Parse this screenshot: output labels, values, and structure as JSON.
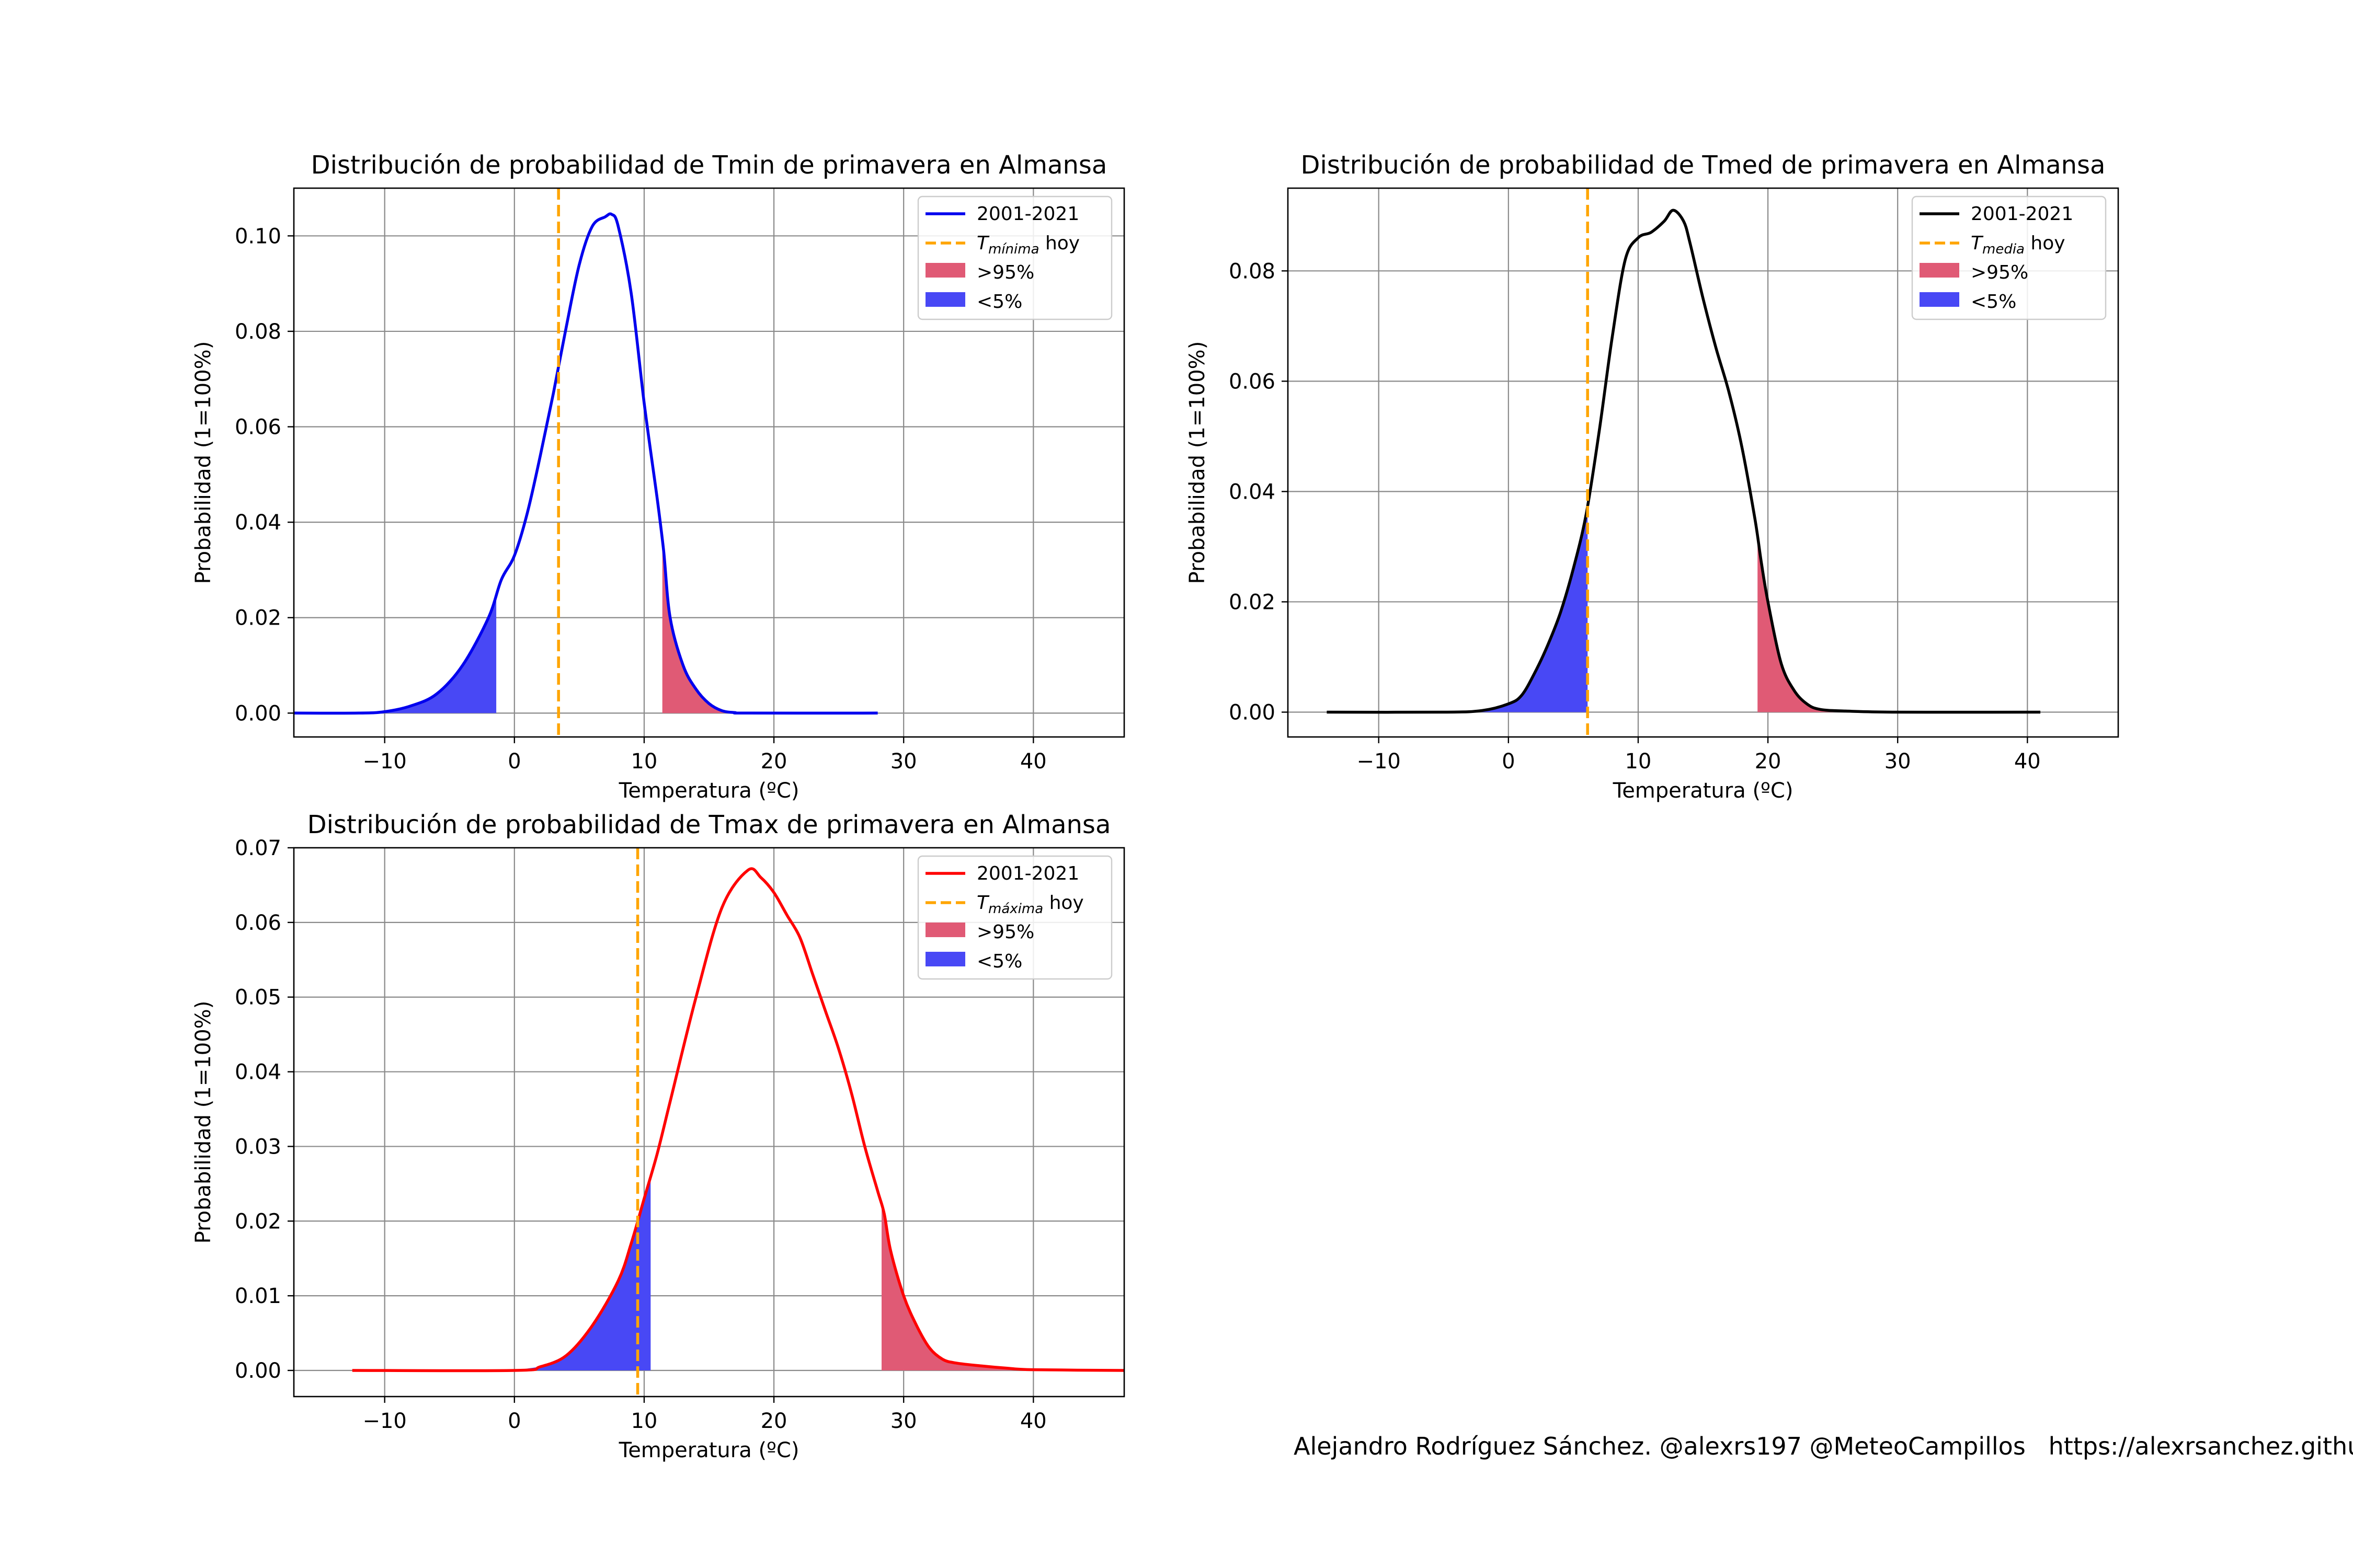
{
  "credit": "Alejandro Rodríguez Sánchez. @alexrs197 @MeteoCampillos   https://alexrsanchez.githu",
  "colors": {
    "red_fill": "#e05a75",
    "blue_fill": "#4848f5",
    "today_line": "#ffa500"
  },
  "chart_data": [
    {
      "type": "line",
      "title": "Distribución de probabilidad de Tmin de primavera en Almansa",
      "xlabel": "Temperatura (ºC)",
      "ylabel": "Probabilidad (1=100%)",
      "xlim": [
        -17,
        47
      ],
      "ylim": [
        -0.005,
        0.11
      ],
      "xticks": [
        -10,
        0,
        10,
        20,
        30,
        40
      ],
      "xtick_labels": [
        "−10",
        "0",
        "10",
        "20",
        "30",
        "40"
      ],
      "yticks": [
        0.0,
        0.02,
        0.04,
        0.06,
        0.08,
        0.1
      ],
      "ytick_labels": [
        "0.00",
        "0.02",
        "0.04",
        "0.06",
        "0.08",
        "0.10"
      ],
      "grid": true,
      "legend_position": "top-right",
      "color": "#0000ee",
      "series": [
        {
          "name": "2001-2021",
          "x": [
            -17,
            -12,
            -10,
            -8,
            -6,
            -4,
            -2,
            -1,
            0,
            1,
            2,
            3,
            4,
            5,
            6,
            7,
            7.5,
            8,
            9,
            10,
            11,
            11.5,
            12,
            13,
            14,
            15,
            16,
            17,
            18,
            28
          ],
          "y": [
            0,
            0,
            0.0003,
            0.0015,
            0.004,
            0.01,
            0.02,
            0.028,
            0.033,
            0.042,
            0.054,
            0.067,
            0.081,
            0.094,
            0.102,
            0.104,
            0.1045,
            0.102,
            0.088,
            0.065,
            0.045,
            0.034,
            0.02,
            0.01,
            0.005,
            0.002,
            0.0005,
            0.0001,
            0,
            0
          ]
        }
      ],
      "today": {
        "label_main": "T",
        "label_sub": "mínima",
        "label_tail": " hoy",
        "x": 3.4
      },
      "low_tail": {
        "label": "<5%",
        "from": -17,
        "to": -1.4
      },
      "high_tail": {
        "label": ">95%",
        "from": 11.4,
        "to": 18
      }
    },
    {
      "type": "line",
      "title": "Distribución de probabilidad de Tmed de primavera en Almansa",
      "xlabel": "Temperatura (ºC)",
      "ylabel": "Probabilidad (1=100%)",
      "xlim": [
        -17,
        47
      ],
      "ylim": [
        -0.0045,
        0.095
      ],
      "xticks": [
        -10,
        0,
        10,
        20,
        30,
        40
      ],
      "xtick_labels": [
        "−10",
        "0",
        "10",
        "20",
        "30",
        "40"
      ],
      "yticks": [
        0.0,
        0.02,
        0.04,
        0.06,
        0.08
      ],
      "ytick_labels": [
        "0.00",
        "0.02",
        "0.04",
        "0.06",
        "0.08"
      ],
      "grid": true,
      "legend_position": "top-right",
      "color": "#000000",
      "series": [
        {
          "name": "2001-2021",
          "x": [
            -14,
            -5,
            -2,
            0,
            1,
            2,
            3,
            4,
            5,
            6,
            7,
            8,
            9,
            10,
            11,
            12,
            12.7,
            13.5,
            14,
            15,
            16,
            17,
            18,
            19,
            19.5,
            20,
            21,
            22,
            23,
            24,
            26,
            30,
            41
          ],
          "y": [
            0,
            0,
            0.0003,
            0.0015,
            0.003,
            0.007,
            0.012,
            0.018,
            0.026,
            0.036,
            0.051,
            0.068,
            0.082,
            0.086,
            0.087,
            0.089,
            0.091,
            0.089,
            0.085,
            0.075,
            0.066,
            0.058,
            0.048,
            0.035,
            0.027,
            0.02,
            0.009,
            0.004,
            0.0015,
            0.0005,
            0.0002,
            0,
            0
          ]
        }
      ],
      "today": {
        "label_main": "T",
        "label_sub": "media",
        "label_tail": " hoy",
        "x": 6.1
      },
      "low_tail": {
        "label": "<5%",
        "from": -14,
        "to": 6.1
      },
      "high_tail": {
        "label": ">95%",
        "from": 19.2,
        "to": 41
      }
    },
    {
      "type": "line",
      "title": "Distribución de probabilidad de Tmax de primavera en Almansa",
      "xlabel": "Temperatura (ºC)",
      "ylabel": "Probabilidad (1=100%)",
      "xlim": [
        -17,
        47
      ],
      "ylim": [
        -0.0035,
        0.07
      ],
      "xticks": [
        -10,
        0,
        10,
        20,
        30,
        40
      ],
      "xtick_labels": [
        "−10",
        "0",
        "10",
        "20",
        "30",
        "40"
      ],
      "yticks": [
        0.0,
        0.01,
        0.02,
        0.03,
        0.04,
        0.05,
        0.06,
        0.07
      ],
      "ytick_labels": [
        "0.00",
        "0.01",
        "0.02",
        "0.03",
        "0.04",
        "0.05",
        "0.06",
        "0.07"
      ],
      "grid": true,
      "legend_position": "top-right",
      "color": "#ff0000",
      "series": [
        {
          "name": "2001-2021",
          "x": [
            -12.5,
            0,
            2,
            4,
            6,
            8,
            9,
            10,
            11,
            12,
            14,
            16,
            18,
            19,
            20,
            21,
            22,
            23,
            24,
            25,
            26,
            27,
            28,
            28.5,
            29,
            30,
            31,
            32,
            33,
            34,
            36,
            38,
            40,
            47
          ],
          "y": [
            0,
            0,
            0.0005,
            0.002,
            0.006,
            0.012,
            0.017,
            0.023,
            0.029,
            0.036,
            0.05,
            0.062,
            0.067,
            0.066,
            0.064,
            0.061,
            0.058,
            0.053,
            0.048,
            0.043,
            0.037,
            0.03,
            0.024,
            0.021,
            0.016,
            0.01,
            0.006,
            0.003,
            0.0015,
            0.001,
            0.0006,
            0.0003,
            0.0001,
            0
          ]
        }
      ],
      "today": {
        "label_main": "T",
        "label_sub": "máxima",
        "label_tail": " hoy",
        "x": 9.5
      },
      "low_tail": {
        "label": "<5%",
        "from": -12.5,
        "to": 10.5
      },
      "high_tail": {
        "label": ">95%",
        "from": 28.3,
        "to": 47
      }
    }
  ]
}
